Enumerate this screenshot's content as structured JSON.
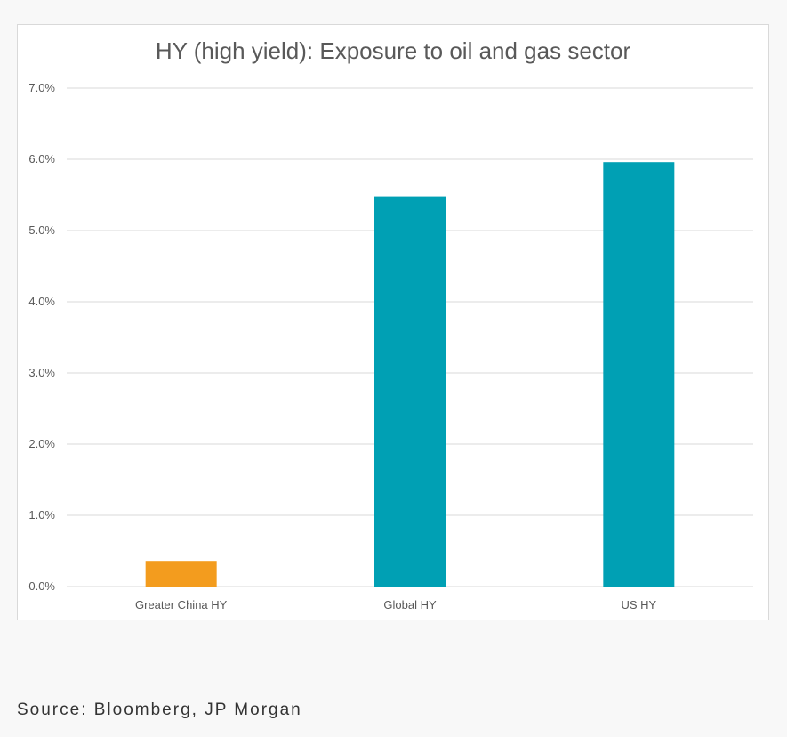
{
  "chart_data": {
    "type": "bar",
    "title": "HY (high yield): Exposure to oil and gas sector",
    "categories": [
      "Greater China HY",
      "Global HY",
      "US HY"
    ],
    "values": [
      0.36,
      5.48,
      5.96
    ],
    "colors": [
      "#f39c1e",
      "#00a0b4",
      "#00a0b4"
    ],
    "ylim": [
      0,
      7
    ],
    "yticks": [
      0,
      1,
      2,
      3,
      4,
      5,
      6,
      7
    ],
    "ytick_labels": [
      "0.0%",
      "1.0%",
      "2.0%",
      "3.0%",
      "4.0%",
      "5.0%",
      "6.0%",
      "7.0%"
    ],
    "xlabel": "",
    "ylabel": "",
    "grid": true,
    "legend": "none"
  },
  "source": "Source: Bloomberg, JP Morgan",
  "colors": {
    "gridline": "#d9d9d9",
    "tick_text": "#595959",
    "title_text": "#595959"
  }
}
